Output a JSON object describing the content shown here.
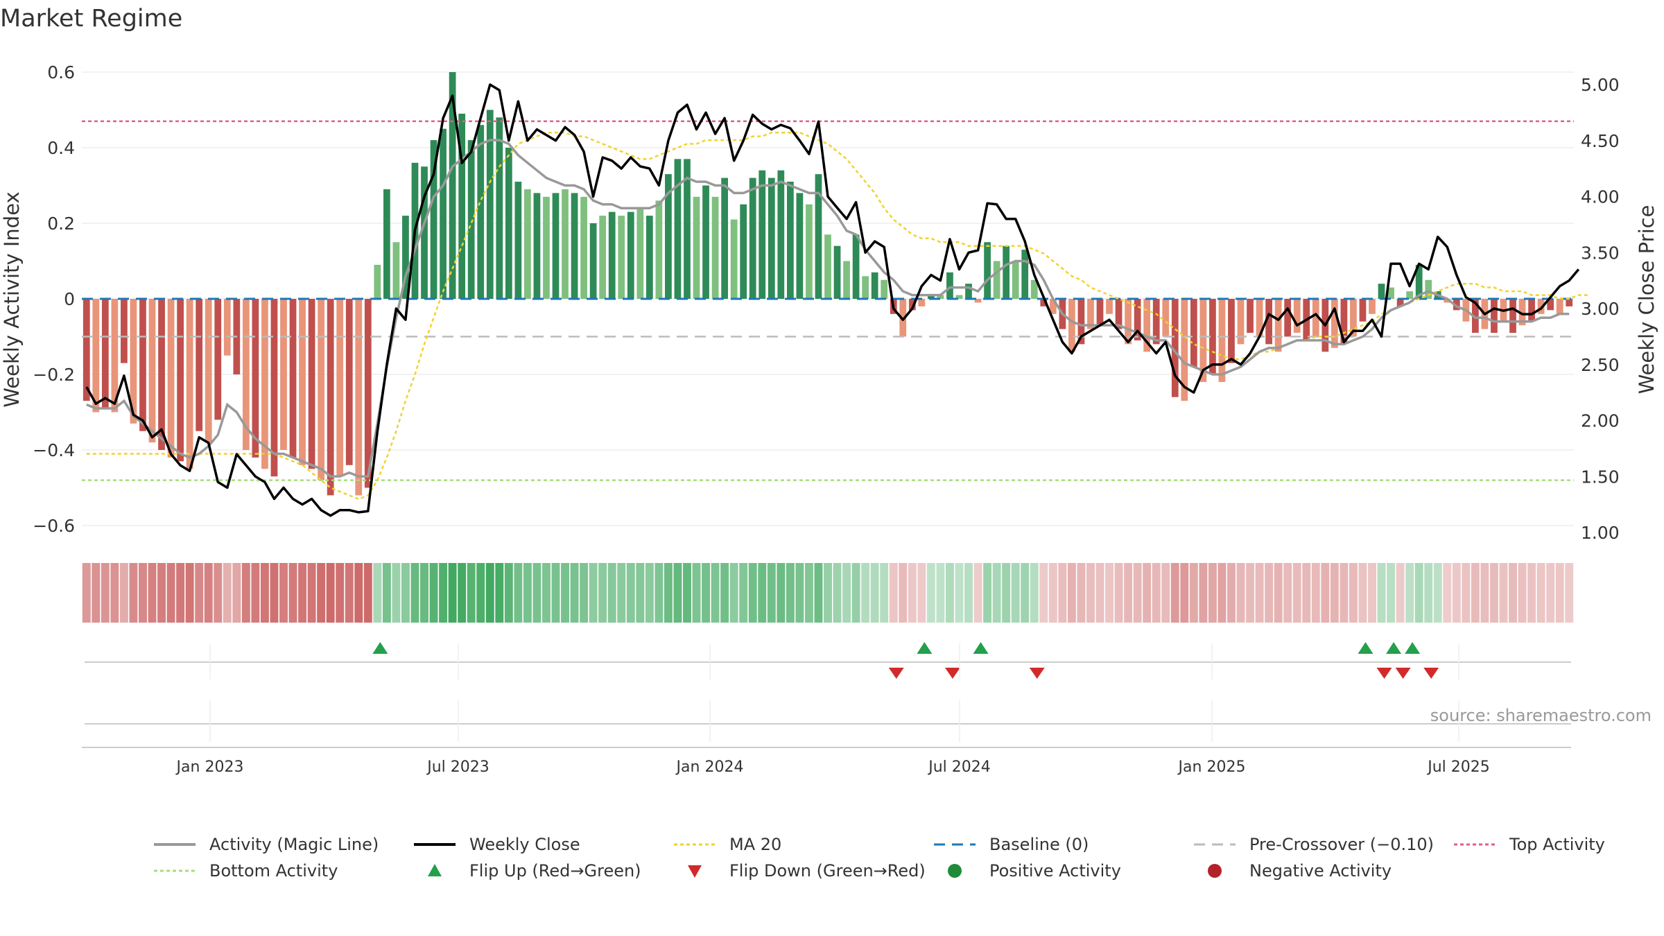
{
  "chart_data": {
    "type": "bar",
    "title": "Market Regime",
    "ylabel": "Weekly Activity Index",
    "y2label": "Weekly Close Price",
    "ylim": [
      -0.6,
      0.6
    ],
    "y2lim": [
      1.0,
      5.0
    ],
    "yticks": [
      "0.6",
      "0.4",
      "0.2",
      "0",
      "−0.2",
      "−0.4",
      "−0.6"
    ],
    "y2ticks": [
      "5.00",
      "4.50",
      "4.00",
      "3.50",
      "3.00",
      "2.50",
      "2.00",
      "1.50",
      "1.00"
    ],
    "xticks": [
      "Jan 2023",
      "Jul 2023",
      "Jan 2024",
      "Jul 2024",
      "Jan 2025",
      "Jul 2025"
    ],
    "top_activity": 0.47,
    "bottom_activity": -0.48,
    "pre_crossover": -0.1,
    "source": "source: sharemaestro.com",
    "grid": true,
    "legend_position": "bottom",
    "colors": {
      "dark_red": "#c0504d",
      "light_red": "#e8957a",
      "dark_green": "#2e8b57",
      "light_green": "#7fc07f",
      "close": "#000000",
      "magic": "#999999",
      "ma20": "#f2d22e",
      "baseline": "#1f77b4",
      "pre": "#bbbbbb",
      "top": "#e06080",
      "bottom": "#a8dc7a",
      "flip_up": "#22a04b",
      "flip_down": "#d22a2a"
    },
    "activity": [
      -0.27,
      -0.3,
      -0.29,
      -0.3,
      -0.17,
      -0.33,
      -0.35,
      -0.38,
      -0.4,
      -0.42,
      -0.43,
      -0.45,
      -0.35,
      -0.38,
      -0.32,
      -0.15,
      -0.2,
      -0.4,
      -0.42,
      -0.45,
      -0.47,
      -0.4,
      -0.42,
      -0.44,
      -0.45,
      -0.48,
      -0.52,
      -0.47,
      -0.44,
      -0.52,
      -0.5,
      0.09,
      0.29,
      0.15,
      0.22,
      0.36,
      0.35,
      0.42,
      0.45,
      0.6,
      0.49,
      0.42,
      0.46,
      0.5,
      0.48,
      0.4,
      0.31,
      0.29,
      0.28,
      0.27,
      0.28,
      0.29,
      0.28,
      0.27,
      0.2,
      0.22,
      0.23,
      0.22,
      0.23,
      0.24,
      0.22,
      0.26,
      0.33,
      0.37,
      0.37,
      0.27,
      0.3,
      0.27,
      0.32,
      0.21,
      0.25,
      0.32,
      0.34,
      0.32,
      0.34,
      0.31,
      0.28,
      0.25,
      0.33,
      0.17,
      0.14,
      0.1,
      0.17,
      0.06,
      0.07,
      0.05,
      -0.04,
      -0.1,
      -0.03,
      -0.02,
      0.01,
      0.01,
      0.07,
      0.01,
      0.04,
      -0.01,
      0.15,
      0.1,
      0.14,
      0.1,
      0.13,
      0.05,
      -0.02,
      -0.04,
      -0.08,
      -0.14,
      -0.12,
      -0.08,
      -0.07,
      -0.04,
      -0.08,
      -0.12,
      -0.11,
      -0.14,
      -0.12,
      -0.1,
      -0.26,
      -0.27,
      -0.18,
      -0.22,
      -0.2,
      -0.22,
      -0.17,
      -0.12,
      -0.09,
      -0.1,
      -0.12,
      -0.14,
      -0.1,
      -0.09,
      -0.11,
      -0.1,
      -0.14,
      -0.13,
      -0.12,
      -0.1,
      -0.06,
      -0.04,
      0.04,
      0.03,
      -0.02,
      0.02,
      0.09,
      0.05,
      0.02,
      -0.01,
      -0.03,
      -0.06,
      -0.09,
      -0.08,
      -0.09,
      -0.06,
      -0.09,
      -0.07,
      -0.06,
      -0.04,
      -0.03,
      -0.04,
      -0.02
    ],
    "weekly_close": [
      2.3,
      2.15,
      2.2,
      2.15,
      2.4,
      2.05,
      2.0,
      1.85,
      1.92,
      1.7,
      1.6,
      1.55,
      1.85,
      1.8,
      1.45,
      1.4,
      1.7,
      1.6,
      1.5,
      1.45,
      1.3,
      1.4,
      1.3,
      1.25,
      1.3,
      1.2,
      1.15,
      1.2,
      1.2,
      1.18,
      1.19,
      1.9,
      2.5,
      3.0,
      2.9,
      3.7,
      4.0,
      4.2,
      4.7,
      4.9,
      4.3,
      4.4,
      4.7,
      5.0,
      4.95,
      4.5,
      4.85,
      4.5,
      4.6,
      4.55,
      4.5,
      4.62,
      4.55,
      4.4,
      4.0,
      4.35,
      4.32,
      4.25,
      4.35,
      4.27,
      4.25,
      4.1,
      4.5,
      4.75,
      4.82,
      4.6,
      4.75,
      4.56,
      4.7,
      4.32,
      4.5,
      4.73,
      4.65,
      4.6,
      4.64,
      4.61,
      4.5,
      4.38,
      4.67,
      4.0,
      3.9,
      3.8,
      3.95,
      3.5,
      3.6,
      3.55,
      3.0,
      2.9,
      3.0,
      3.2,
      3.3,
      3.25,
      3.62,
      3.35,
      3.5,
      3.52,
      3.94,
      3.93,
      3.8,
      3.8,
      3.6,
      3.3,
      3.1,
      2.9,
      2.7,
      2.6,
      2.75,
      2.8,
      2.85,
      2.9,
      2.8,
      2.7,
      2.8,
      2.7,
      2.6,
      2.7,
      2.4,
      2.3,
      2.25,
      2.45,
      2.5,
      2.5,
      2.55,
      2.5,
      2.6,
      2.75,
      2.95,
      2.9,
      3.0,
      2.85,
      2.9,
      2.95,
      2.85,
      3.0,
      2.7,
      2.8,
      2.8,
      2.9,
      2.75,
      3.4,
      3.4,
      3.2,
      3.4,
      3.35,
      3.64,
      3.55,
      3.3,
      3.1,
      3.05,
      2.95,
      3.0,
      2.98,
      3.0,
      2.95,
      2.95,
      3.0,
      3.1,
      3.2,
      3.25,
      3.35
    ],
    "magic_line": [
      -0.28,
      -0.29,
      -0.29,
      -0.29,
      -0.27,
      -0.31,
      -0.33,
      -0.35,
      -0.37,
      -0.39,
      -0.41,
      -0.42,
      -0.41,
      -0.39,
      -0.36,
      -0.28,
      -0.3,
      -0.34,
      -0.37,
      -0.39,
      -0.41,
      -0.41,
      -0.42,
      -0.43,
      -0.44,
      -0.45,
      -0.47,
      -0.47,
      -0.46,
      -0.47,
      -0.47,
      -0.33,
      -0.18,
      -0.05,
      0.06,
      0.13,
      0.2,
      0.27,
      0.3,
      0.35,
      0.37,
      0.39,
      0.41,
      0.42,
      0.42,
      0.41,
      0.38,
      0.36,
      0.34,
      0.32,
      0.31,
      0.3,
      0.3,
      0.29,
      0.26,
      0.25,
      0.25,
      0.24,
      0.24,
      0.24,
      0.24,
      0.25,
      0.28,
      0.3,
      0.32,
      0.31,
      0.31,
      0.3,
      0.3,
      0.28,
      0.28,
      0.29,
      0.3,
      0.3,
      0.31,
      0.3,
      0.29,
      0.28,
      0.28,
      0.25,
      0.22,
      0.18,
      0.17,
      0.13,
      0.1,
      0.07,
      0.05,
      0.02,
      0.01,
      0.01,
      0.01,
      0.01,
      0.03,
      0.03,
      0.03,
      0.02,
      0.05,
      0.07,
      0.09,
      0.1,
      0.1,
      0.09,
      0.05,
      0.0,
      -0.04,
      -0.06,
      -0.07,
      -0.07,
      -0.07,
      -0.07,
      -0.07,
      -0.08,
      -0.09,
      -0.1,
      -0.11,
      -0.11,
      -0.14,
      -0.17,
      -0.18,
      -0.19,
      -0.2,
      -0.2,
      -0.19,
      -0.18,
      -0.16,
      -0.14,
      -0.13,
      -0.13,
      -0.12,
      -0.11,
      -0.11,
      -0.11,
      -0.11,
      -0.12,
      -0.12,
      -0.11,
      -0.1,
      -0.08,
      -0.05,
      -0.03,
      -0.02,
      -0.01,
      0.01,
      0.02,
      0.01,
      0.0,
      -0.02,
      -0.03,
      -0.05,
      -0.05,
      -0.06,
      -0.06,
      -0.06,
      -0.06,
      -0.06,
      -0.05,
      -0.05,
      -0.04,
      -0.04
    ],
    "ma20": [
      -0.41,
      -0.41,
      -0.41,
      -0.41,
      -0.41,
      -0.41,
      -0.41,
      -0.41,
      -0.41,
      -0.41,
      -0.41,
      -0.41,
      -0.41,
      -0.41,
      -0.41,
      -0.41,
      -0.41,
      -0.41,
      -0.41,
      -0.41,
      -0.41,
      -0.42,
      -0.43,
      -0.44,
      -0.46,
      -0.48,
      -0.5,
      -0.51,
      -0.52,
      -0.53,
      -0.52,
      -0.48,
      -0.42,
      -0.35,
      -0.27,
      -0.2,
      -0.12,
      -0.05,
      0.02,
      0.08,
      0.14,
      0.2,
      0.26,
      0.31,
      0.35,
      0.38,
      0.41,
      0.42,
      0.43,
      0.44,
      0.44,
      0.44,
      0.43,
      0.43,
      0.42,
      0.41,
      0.4,
      0.39,
      0.38,
      0.37,
      0.37,
      0.38,
      0.39,
      0.4,
      0.41,
      0.41,
      0.42,
      0.42,
      0.42,
      0.42,
      0.42,
      0.43,
      0.43,
      0.44,
      0.44,
      0.44,
      0.44,
      0.43,
      0.42,
      0.41,
      0.39,
      0.37,
      0.34,
      0.31,
      0.28,
      0.24,
      0.21,
      0.19,
      0.17,
      0.16,
      0.16,
      0.15,
      0.15,
      0.15,
      0.14,
      0.14,
      0.14,
      0.14,
      0.14,
      0.14,
      0.14,
      0.13,
      0.12,
      0.1,
      0.08,
      0.06,
      0.05,
      0.03,
      0.02,
      0.01,
      0.0,
      -0.01,
      -0.02,
      -0.03,
      -0.04,
      -0.06,
      -0.08,
      -0.1,
      -0.12,
      -0.13,
      -0.14,
      -0.15,
      -0.16,
      -0.16,
      -0.15,
      -0.14,
      -0.14,
      -0.13,
      -0.12,
      -0.11,
      -0.11,
      -0.1,
      -0.1,
      -0.1,
      -0.09,
      -0.08,
      -0.07,
      -0.06,
      -0.04,
      -0.03,
      -0.02,
      -0.01,
      0.0,
      0.01,
      0.02,
      0.03,
      0.04,
      0.04,
      0.04,
      0.03,
      0.03,
      0.02,
      0.02,
      0.02,
      0.01,
      0.01,
      0.01,
      0.0,
      0.0,
      0.01,
      0.01
    ],
    "flips_up_index": [
      31,
      89,
      95,
      136,
      139,
      141
    ],
    "flips_down_index": [
      86,
      92,
      101,
      138,
      140,
      143
    ],
    "legend": [
      "Activity (Magic Line)",
      "Weekly Close",
      "MA 20",
      "Baseline (0)",
      "Pre-Crossover (−0.10)",
      "Top Activity",
      "Bottom Activity",
      "Flip Up (Red→Green)",
      "Flip Down (Green→Red)",
      "Positive Activity",
      "Negative Activity"
    ]
  }
}
